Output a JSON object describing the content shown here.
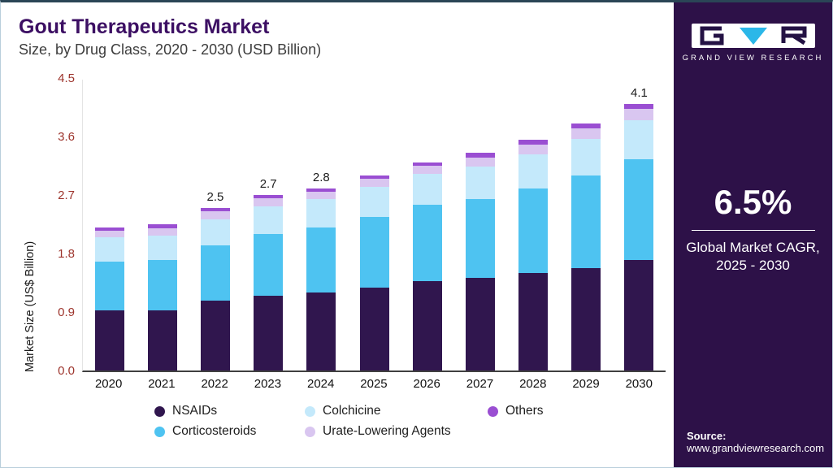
{
  "header": {
    "title": "Gout Therapeutics Market",
    "subtitle": "Size, by Drug Class, 2020 - 2030 (USD Billion)"
  },
  "chart_data": {
    "type": "bar",
    "stacked": true,
    "title": "Gout Therapeutics Market Size, by Drug Class, 2020 - 2030 (USD Billion)",
    "xlabel": "",
    "ylabel": "Market Size (US$ Billion)",
    "ylim": [
      0,
      4.5
    ],
    "yticks": [
      0,
      0.9,
      1.8,
      2.7,
      3.6,
      4.5
    ],
    "grid": false,
    "legend_position": "bottom",
    "categories": [
      "2020",
      "2021",
      "2022",
      "2023",
      "2024",
      "2025",
      "2026",
      "2027",
      "2028",
      "2029",
      "2030"
    ],
    "bar_labels": [
      "",
      "",
      "2.5",
      "2.7",
      "2.8",
      "",
      "",
      "",
      "",
      "",
      "4.1"
    ],
    "series": [
      {
        "name": "NSAIDs",
        "color": "#30164e",
        "values": [
          0.92,
          0.93,
          1.07,
          1.15,
          1.2,
          1.28,
          1.37,
          1.42,
          1.5,
          1.58,
          1.7
        ]
      },
      {
        "name": "Corticosteroids",
        "color": "#4ec3f1",
        "values": [
          0.75,
          0.77,
          0.85,
          0.95,
          1.0,
          1.08,
          1.18,
          1.22,
          1.3,
          1.42,
          1.55
        ]
      },
      {
        "name": "Colchicine",
        "color": "#c4e9fb",
        "values": [
          0.38,
          0.38,
          0.41,
          0.43,
          0.44,
          0.46,
          0.48,
          0.5,
          0.53,
          0.56,
          0.6
        ]
      },
      {
        "name": "Urate-Lowering Agents",
        "color": "#d9c6f0",
        "values": [
          0.1,
          0.11,
          0.12,
          0.12,
          0.11,
          0.13,
          0.12,
          0.14,
          0.15,
          0.16,
          0.17
        ]
      },
      {
        "name": "Others",
        "color": "#9a4ed2",
        "values": [
          0.05,
          0.06,
          0.05,
          0.05,
          0.05,
          0.05,
          0.05,
          0.07,
          0.07,
          0.08,
          0.08
        ]
      }
    ],
    "totals": [
      2.2,
      2.25,
      2.5,
      2.7,
      2.8,
      3.0,
      3.2,
      3.35,
      3.55,
      3.8,
      4.1
    ]
  },
  "legend": {
    "rows": [
      [
        "NSAIDs",
        "Colchicine",
        "Others"
      ],
      [
        "Corticosteroids",
        "Urate-Lowering Agents"
      ]
    ]
  },
  "sidebar": {
    "logo_caption": "GRAND VIEW RESEARCH",
    "cagr_value": "6.5%",
    "cagr_label_line1": "Global Market CAGR,",
    "cagr_label_line2": "2025 - 2030",
    "source_label": "Source:",
    "source_url": "www.grandviewresearch.com"
  },
  "colors": {
    "panel_bg": "#2d1148",
    "title_text": "#3c0f63",
    "y_tick_text": "#9d342c",
    "accent_cyan": "#2bb7e8"
  }
}
